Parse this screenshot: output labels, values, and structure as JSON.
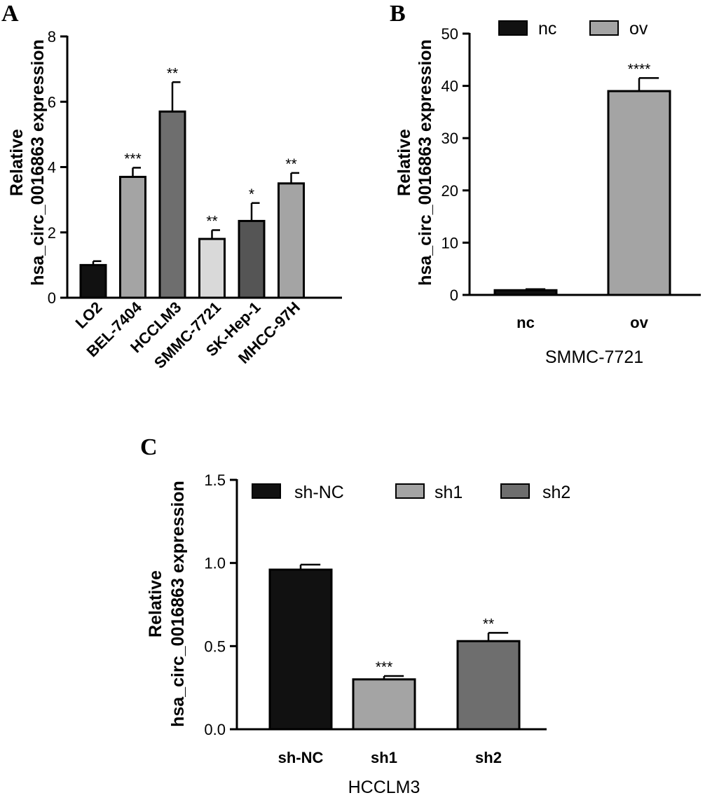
{
  "chart_data": [
    {
      "panel": "A",
      "type": "bar",
      "title": "",
      "ylabel_line1": "Relative",
      "ylabel_line2": "hsa_circ_0016863 expression",
      "xlabel": "",
      "categories": [
        "LO2",
        "BEL-7404",
        "HCCLM3",
        "SMMC-7721",
        "SK-Hep-1",
        "MHCC-97H"
      ],
      "values": [
        1.0,
        3.7,
        5.7,
        1.8,
        2.35,
        3.5
      ],
      "errors": [
        0.12,
        0.28,
        0.9,
        0.27,
        0.55,
        0.32
      ],
      "significance": [
        "",
        "***",
        "**",
        "**",
        "*",
        "**"
      ],
      "colors": [
        "#111111",
        "#a4a4a4",
        "#6e6e6e",
        "#d9d9d9",
        "#555555",
        "#a4a4a4"
      ],
      "ylim": [
        0,
        8
      ],
      "yticks": [
        0,
        2,
        4,
        6,
        8
      ]
    },
    {
      "panel": "B",
      "type": "bar",
      "title": "",
      "ylabel_line1": "Relative",
      "ylabel_line2": "hsa_circ_0016863 expression",
      "xlabel": "SMMC-7721",
      "categories": [
        "nc",
        "ov"
      ],
      "values": [
        0.9,
        39.0
      ],
      "errors": [
        0.2,
        2.5
      ],
      "significance": [
        "",
        "****"
      ],
      "colors": [
        "#111111",
        "#a4a4a4"
      ],
      "legend": [
        "nc",
        "ov"
      ],
      "ylim": [
        0,
        50
      ],
      "yticks": [
        0,
        10,
        20,
        30,
        40,
        50
      ]
    },
    {
      "panel": "C",
      "type": "bar",
      "title": "",
      "ylabel_line1": "Relative",
      "ylabel_line2": "hsa_circ_0016863 expression",
      "xlabel": "HCCLM3",
      "categories": [
        "sh-NC",
        "sh1",
        "sh2"
      ],
      "values": [
        0.96,
        0.3,
        0.53
      ],
      "errors": [
        0.03,
        0.02,
        0.05
      ],
      "significance": [
        "",
        "***",
        "**"
      ],
      "colors": [
        "#111111",
        "#a4a4a4",
        "#6e6e6e"
      ],
      "legend": [
        "sh-NC",
        "sh1",
        "sh2"
      ],
      "ylim": [
        0,
        1.5
      ],
      "yticks": [
        "0.0",
        "0.5",
        "1.0",
        "1.5"
      ]
    }
  ]
}
